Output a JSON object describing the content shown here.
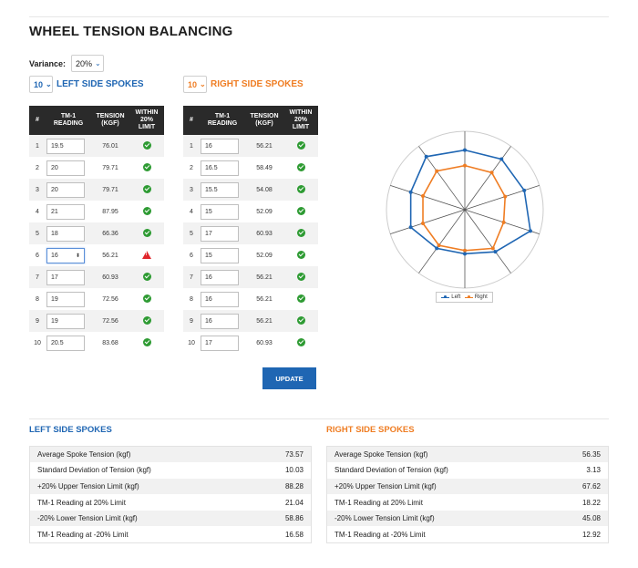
{
  "title": "WHEEL TENSION BALANCING",
  "variance": {
    "label": "Variance:",
    "value": "20%"
  },
  "left": {
    "count": "10",
    "heading": "LEFT SIDE SPOKES",
    "columns": [
      "#",
      "TM-1 READING",
      "TENSION (KGF)",
      "WITHIN 20% LIMIT"
    ],
    "rows": [
      {
        "n": "1",
        "reading": "19.5",
        "tension": "76.01",
        "ok": true
      },
      {
        "n": "2",
        "reading": "20",
        "tension": "79.71",
        "ok": true
      },
      {
        "n": "3",
        "reading": "20",
        "tension": "79.71",
        "ok": true
      },
      {
        "n": "4",
        "reading": "21",
        "tension": "87.95",
        "ok": true
      },
      {
        "n": "5",
        "reading": "18",
        "tension": "66.36",
        "ok": true
      },
      {
        "n": "6",
        "reading": "16",
        "tension": "56.21",
        "ok": false
      },
      {
        "n": "7",
        "reading": "17",
        "tension": "60.93",
        "ok": true
      },
      {
        "n": "8",
        "reading": "19",
        "tension": "72.56",
        "ok": true
      },
      {
        "n": "9",
        "reading": "19",
        "tension": "72.56",
        "ok": true
      },
      {
        "n": "10",
        "reading": "20.5",
        "tension": "83.68",
        "ok": true
      }
    ]
  },
  "right": {
    "count": "10",
    "heading": "RIGHT SIDE SPOKES",
    "columns": [
      "#",
      "TM-1 READING",
      "TENSION (KGF)",
      "WITHIN 20% LIMIT"
    ],
    "rows": [
      {
        "n": "1",
        "reading": "16",
        "tension": "56.21",
        "ok": true
      },
      {
        "n": "2",
        "reading": "16.5",
        "tension": "58.49",
        "ok": true
      },
      {
        "n": "3",
        "reading": "15.5",
        "tension": "54.08",
        "ok": true
      },
      {
        "n": "4",
        "reading": "15",
        "tension": "52.09",
        "ok": true
      },
      {
        "n": "5",
        "reading": "17",
        "tension": "60.93",
        "ok": true
      },
      {
        "n": "6",
        "reading": "15",
        "tension": "52.09",
        "ok": true
      },
      {
        "n": "7",
        "reading": "16",
        "tension": "56.21",
        "ok": true
      },
      {
        "n": "8",
        "reading": "16",
        "tension": "56.21",
        "ok": true
      },
      {
        "n": "9",
        "reading": "16",
        "tension": "56.21",
        "ok": true
      },
      {
        "n": "10",
        "reading": "17",
        "tension": "60.93",
        "ok": true
      }
    ]
  },
  "update_label": "UPDATE",
  "radar": {
    "legend": [
      "Left",
      "Right"
    ],
    "colors": {
      "left": "#1f66b3",
      "right": "#ef7d23",
      "grid": "#555555",
      "ring": "#cccccc"
    },
    "max": 100
  },
  "stats": {
    "left": {
      "heading": "LEFT SIDE SPOKES",
      "rows": [
        {
          "label": "Average Spoke Tension (kgf)",
          "value": "73.57"
        },
        {
          "label": "Standard Deviation of Tension (kgf)",
          "value": "10.03"
        },
        {
          "label": "+20% Upper Tension Limit (kgf)",
          "value": "88.28"
        },
        {
          "label": "TM-1 Reading at 20% Limit",
          "value": "21.04"
        },
        {
          "label": "-20% Lower Tension Limit (kgf)",
          "value": "58.86"
        },
        {
          "label": "TM-1 Reading at -20% Limit",
          "value": "16.58"
        }
      ]
    },
    "right": {
      "heading": "RIGHT SIDE SPOKES",
      "rows": [
        {
          "label": "Average Spoke Tension (kgf)",
          "value": "56.35"
        },
        {
          "label": "Standard Deviation of Tension (kgf)",
          "value": "3.13"
        },
        {
          "label": "+20% Upper Tension Limit (kgf)",
          "value": "67.62"
        },
        {
          "label": "TM-1 Reading at 20% Limit",
          "value": "18.22"
        },
        {
          "label": "-20% Lower Tension Limit (kgf)",
          "value": "45.08"
        },
        {
          "label": "TM-1 Reading at -20% Limit",
          "value": "12.92"
        }
      ]
    }
  }
}
